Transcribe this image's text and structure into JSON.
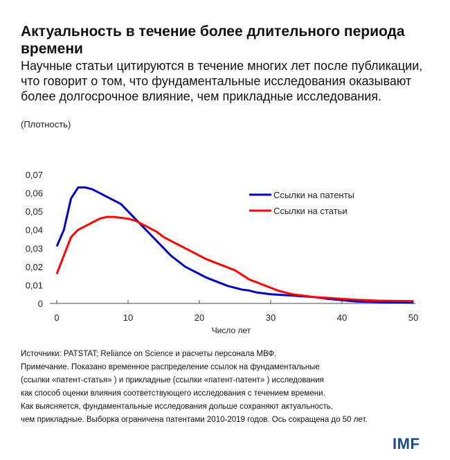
{
  "title": "Актуальность в течение более длительного периода времени",
  "subtitle": "Научные статьи цитируются в течение многих лет после публикации, что говорит о том, что фундаментальные исследования оказывают более долгосрочное влияние, чем прикладные исследования.",
  "unit": "(Плотность)",
  "notes": [
    "Источники: PATSTAT; Reliance on Science и расчеты персонала МВФ.",
    "Примечание. Показано временное распределение ссылок на фундаментальные",
    "(ссылки «патент-статья» ) и прикладные (ссылки «патент-патент» ) исследования",
    "как способ оценки влияния соответствующего исследования с течением времени.",
    "Как выясняется, фундаментальные исследования дольше сохраняют актуальность,",
    "чем прикладные. Выборка ограничена патентами 2010-2019 годов. Ось сокращена до 50 лет."
  ],
  "logo": "IMF",
  "chart_data": {
    "type": "line",
    "xlabel": "Число лет",
    "ylabel": "",
    "xlim": [
      0,
      50
    ],
    "ylim": [
      0,
      0.07
    ],
    "xticks": [
      "0",
      "10",
      "20",
      "30",
      "40",
      "50"
    ],
    "yticks": [
      "0",
      "0,01",
      "0,02",
      "0,03",
      "0,04",
      "0,05",
      "0,06",
      "0,07"
    ],
    "grid": false,
    "legend_position": "top-right",
    "series": [
      {
        "name": "Ссылки на патенты",
        "color": "#0000c0",
        "x": [
          0,
          1,
          2,
          3,
          4,
          5,
          6,
          7,
          8,
          9,
          10,
          11,
          12,
          13,
          14,
          15,
          16,
          17,
          18,
          19,
          20,
          21,
          22,
          23,
          24,
          25,
          26,
          27,
          28,
          29,
          30,
          32,
          34,
          36,
          38,
          40,
          42,
          45,
          50
        ],
        "y": [
          0.031,
          0.04,
          0.057,
          0.063,
          0.063,
          0.062,
          0.06,
          0.058,
          0.056,
          0.054,
          0.05,
          0.046,
          0.042,
          0.038,
          0.034,
          0.03,
          0.026,
          0.023,
          0.02,
          0.018,
          0.016,
          0.014,
          0.0125,
          0.011,
          0.0095,
          0.0085,
          0.0075,
          0.007,
          0.006,
          0.0055,
          0.005,
          0.0045,
          0.004,
          0.0035,
          0.0025,
          0.0018,
          0.001,
          0.0008,
          0.0005
        ]
      },
      {
        "name": "Ссылки на статьи",
        "color": "#ff0000",
        "x": [
          0,
          1,
          2,
          3,
          4,
          5,
          6,
          7,
          8,
          9,
          10,
          11,
          12,
          13,
          14,
          15,
          16,
          17,
          18,
          19,
          20,
          21,
          22,
          23,
          24,
          25,
          26,
          27,
          28,
          29,
          30,
          31,
          32,
          33,
          34,
          35,
          36,
          38,
          40,
          42,
          45,
          50
        ],
        "y": [
          0.016,
          0.026,
          0.036,
          0.04,
          0.042,
          0.044,
          0.046,
          0.047,
          0.047,
          0.0465,
          0.046,
          0.045,
          0.043,
          0.041,
          0.039,
          0.036,
          0.034,
          0.032,
          0.03,
          0.028,
          0.026,
          0.024,
          0.0225,
          0.021,
          0.0195,
          0.018,
          0.0155,
          0.013,
          0.0115,
          0.01,
          0.0085,
          0.007,
          0.006,
          0.005,
          0.0045,
          0.004,
          0.0035,
          0.003,
          0.0025,
          0.002,
          0.0015,
          0.0012
        ]
      }
    ]
  }
}
